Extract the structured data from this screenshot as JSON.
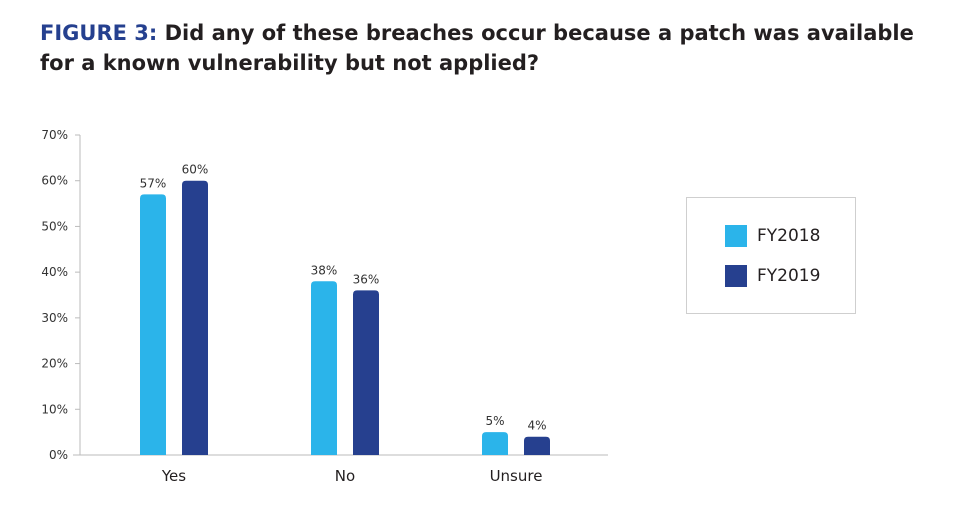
{
  "title": {
    "figure_label": "FIGURE 3:",
    "text": "Did any of these breaches occur because a patch was available for a known vulnerability but not applied?"
  },
  "colors": {
    "FY2018": "#2bb4ea",
    "FY2019": "#26408f",
    "title_accent": "#25408f"
  },
  "chart_data": {
    "type": "bar",
    "title": "Did any of these breaches occur because a patch was available for a known vulnerability but not applied?",
    "categories": [
      "Yes",
      "No",
      "Unsure"
    ],
    "series": [
      {
        "name": "FY2018",
        "values": [
          57,
          38,
          5
        ],
        "labels": [
          "57%",
          "38%",
          "5%"
        ]
      },
      {
        "name": "FY2019",
        "values": [
          60,
          36,
          4
        ],
        "labels": [
          "60%",
          "36%",
          "4%"
        ]
      }
    ],
    "ylim": [
      0,
      70
    ],
    "yticks": [
      "0%",
      "10%",
      "20%",
      "30%",
      "40%",
      "50%",
      "60%",
      "70%"
    ],
    "grid": false,
    "legend": "right",
    "xlabel": "",
    "ylabel": ""
  }
}
